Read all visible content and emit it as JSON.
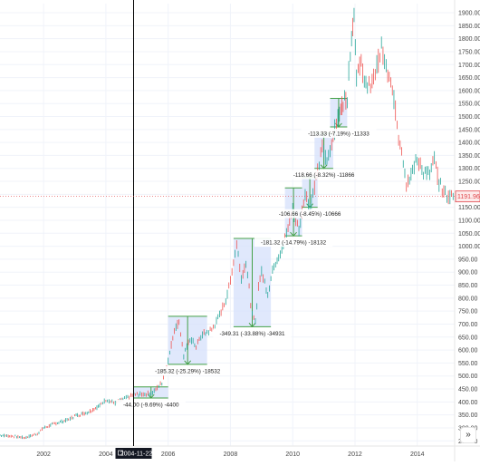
{
  "chart_data": {
    "type": "line",
    "price_axis": {
      "ticks": [
        "1900.00",
        "1850.00",
        "1800.00",
        "1750.00",
        "1700.00",
        "1650.00",
        "1600.00",
        "1550.00",
        "1500.00",
        "1450.00",
        "1400.00",
        "1350.00",
        "1300.00",
        "1250.00",
        "1200.00",
        "1150.00",
        "1100.00",
        "1050.00",
        "1000.00",
        "950.00",
        "900.00",
        "850.00",
        "800.00",
        "750.00",
        "700.00",
        "650.00",
        "600.00",
        "550.00",
        "500.00",
        "450.00",
        "400.00",
        "350.00",
        "300.00",
        "250.00"
      ],
      "range": [
        230,
        1935
      ]
    },
    "time_axis": {
      "ticks": [
        "2002",
        "2004",
        "2006",
        "2008",
        "2010",
        "2012",
        "2014"
      ],
      "range": [
        2000.6,
        2015.2
      ]
    },
    "last_price": {
      "label": "1191.96",
      "value": 1191.96,
      "color": "#e0474c"
    },
    "crosshair": {
      "date_label": "2004-11-22",
      "year": 2004.89
    },
    "series": [
      {
        "name": "",
        "points": [
          [
            2000.6,
            272
          ],
          [
            2001.0,
            268
          ],
          [
            2001.4,
            262
          ],
          [
            2001.8,
            278
          ],
          [
            2002.0,
            300
          ],
          [
            2002.4,
            318
          ],
          [
            2002.8,
            332
          ],
          [
            2003.0,
            346
          ],
          [
            2003.4,
            360
          ],
          [
            2003.8,
            385
          ],
          [
            2004.0,
            410
          ],
          [
            2004.3,
            395
          ],
          [
            2004.6,
            412
          ],
          [
            2004.9,
            428
          ],
          [
            2005.2,
            430
          ],
          [
            2005.5,
            435
          ],
          [
            2005.8,
            475
          ],
          [
            2006.0,
            560
          ],
          [
            2006.2,
            680
          ],
          [
            2006.35,
            710
          ],
          [
            2006.5,
            575
          ],
          [
            2006.7,
            645
          ],
          [
            2006.9,
            615
          ],
          [
            2007.1,
            660
          ],
          [
            2007.4,
            678
          ],
          [
            2007.6,
            720
          ],
          [
            2007.9,
            810
          ],
          [
            2008.1,
            940
          ],
          [
            2008.2,
            1010
          ],
          [
            2008.35,
            880
          ],
          [
            2008.5,
            940
          ],
          [
            2008.7,
            730
          ],
          [
            2008.8,
            705
          ],
          [
            2008.9,
            850
          ],
          [
            2009.0,
            900
          ],
          [
            2009.2,
            820
          ],
          [
            2009.4,
            930
          ],
          [
            2009.7,
            1000
          ],
          [
            2009.9,
            1100
          ],
          [
            2010.0,
            1140
          ],
          [
            2010.2,
            1060
          ],
          [
            2010.4,
            1210
          ],
          [
            2010.55,
            1150
          ],
          [
            2010.75,
            1255
          ],
          [
            2010.95,
            1380
          ],
          [
            2011.1,
            1325
          ],
          [
            2011.3,
            1430
          ],
          [
            2011.5,
            1510
          ],
          [
            2011.62,
            1560
          ],
          [
            2011.75,
            1575
          ],
          [
            2011.85,
            1760
          ],
          [
            2011.97,
            1900
          ],
          [
            2012.05,
            1660
          ],
          [
            2012.2,
            1700
          ],
          [
            2012.4,
            1600
          ],
          [
            2012.6,
            1650
          ],
          [
            2012.85,
            1760
          ],
          [
            2013.05,
            1660
          ],
          [
            2013.25,
            1570
          ],
          [
            2013.4,
            1420
          ],
          [
            2013.5,
            1380
          ],
          [
            2013.65,
            1240
          ],
          [
            2013.85,
            1300
          ],
          [
            2014.0,
            1330
          ],
          [
            2014.2,
            1290
          ],
          [
            2014.4,
            1275
          ],
          [
            2014.55,
            1335
          ],
          [
            2014.7,
            1240
          ],
          [
            2014.85,
            1210
          ],
          [
            2015.0,
            1190
          ],
          [
            2015.2,
            1192
          ]
        ]
      }
    ],
    "measurements": [
      {
        "x": [
          2004.9,
          2006.0
        ],
        "y": [
          415,
          458
        ],
        "label": "-44.00 (-9.69%) -4400"
      },
      {
        "x": [
          2006.0,
          2007.25
        ],
        "y": [
          545,
          730
        ],
        "label": "-185.32 (-25.29%) -18532"
      },
      {
        "x": [
          2008.1,
          2009.3
        ],
        "y": [
          690,
          1030
        ],
        "label": "-349.31 (-33.88%) -34931"
      },
      {
        "x": [
          2009.75,
          2010.3
        ],
        "y": [
          1040,
          1225
        ],
        "label": "-181.32 (-14.79%) -18132"
      },
      {
        "x": [
          2010.3,
          2010.8
        ],
        "y": [
          1150,
          1265
        ],
        "label": "-106.66 (-8.45%) -10666"
      },
      {
        "x": [
          2010.7,
          2011.3
        ],
        "y": [
          1300,
          1435
        ],
        "label": "-118.66 (-8.32%) -11866"
      },
      {
        "x": [
          2011.2,
          2011.75
        ],
        "y": [
          1460,
          1570
        ],
        "label": "-113.33 (-7.19%) -11333"
      }
    ],
    "colors": {
      "up": "#26a69a",
      "down": "#ef5350",
      "box_fill": "#d6e0fb",
      "box_border": "#43a047"
    }
  },
  "controls": {
    "scroll_to_latest": "»"
  }
}
